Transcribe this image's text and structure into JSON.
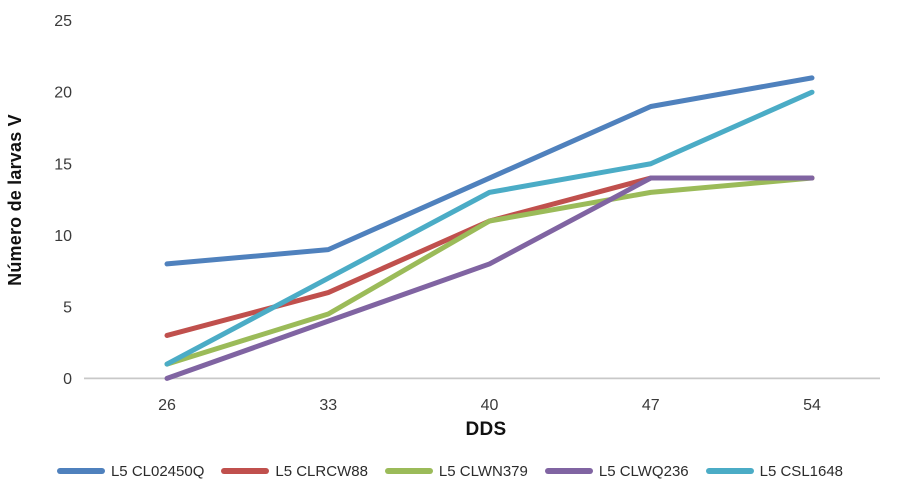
{
  "chart_data": {
    "type": "line",
    "title": "",
    "xlabel": "DDS",
    "ylabel": "Número de larvas V",
    "categories": [
      "26",
      "33",
      "40",
      "47",
      "54"
    ],
    "x_values": [
      26,
      33,
      40,
      47,
      54
    ],
    "yticks": [
      "0",
      "5",
      "10",
      "15",
      "20",
      "25"
    ],
    "ytick_values": [
      0,
      5,
      10,
      15,
      20,
      25
    ],
    "ylim": [
      0,
      25
    ],
    "grid": false,
    "legend_position": "bottom",
    "axis_color": "#C8C8C8",
    "tick_text_color": "#3a3a3a",
    "series": [
      {
        "name": "L5 CL02450Q",
        "color": "#4F81BD",
        "values": [
          8,
          9,
          14,
          19,
          21
        ]
      },
      {
        "name": "L5 CLRCW88",
        "color": "#C0504D",
        "values": [
          3,
          6,
          11,
          14,
          14
        ]
      },
      {
        "name": "L5 CLWN379",
        "color": "#9BBB59",
        "values": [
          1,
          4.5,
          11,
          13,
          14
        ]
      },
      {
        "name": "L5 CLWQ236",
        "color": "#8064A2",
        "values": [
          0,
          4,
          8,
          14,
          14
        ]
      },
      {
        "name": "L5 CSL1648",
        "color": "#4BACC6",
        "values": [
          1,
          7,
          13,
          15,
          20
        ]
      }
    ]
  }
}
